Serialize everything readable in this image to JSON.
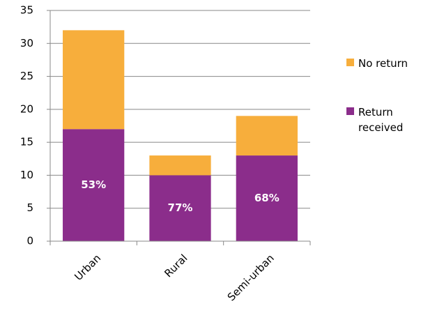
{
  "chart_data": {
    "type": "stacked_bar",
    "categories": [
      "Urban",
      "Rural",
      "Semi-urban"
    ],
    "series": [
      {
        "name": "Return received",
        "color": "#8b2d8b",
        "values": [
          17,
          10,
          13
        ]
      },
      {
        "name": "No return",
        "color": "#f7ae3c",
        "values": [
          15,
          3,
          6
        ]
      }
    ],
    "percent_labels": [
      "53%",
      "77%",
      "68%"
    ],
    "ylim": [
      0,
      35
    ],
    "yticks": [
      0,
      5,
      10,
      15,
      20,
      25,
      30,
      35
    ],
    "grid": true,
    "legend": "right"
  }
}
